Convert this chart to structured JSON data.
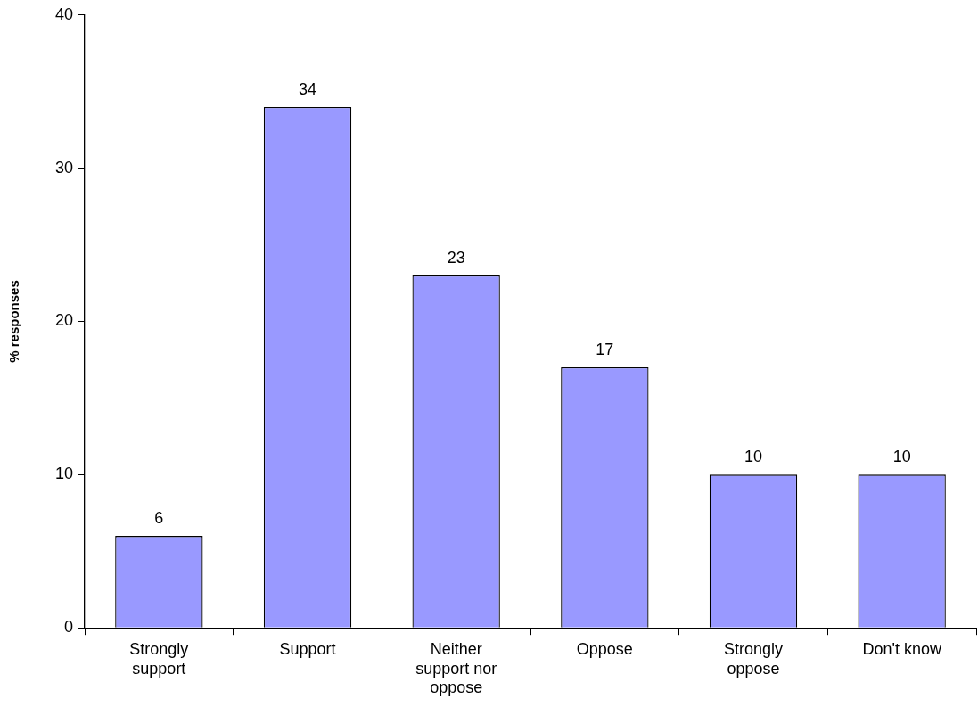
{
  "chart_data": {
    "type": "bar",
    "ylabel": "% responses",
    "categories": [
      "Strongly support",
      "Support",
      "Neither support nor oppose",
      "Oppose",
      "Strongly oppose",
      "Don't know"
    ],
    "values": [
      6,
      34,
      23,
      17,
      10,
      10
    ],
    "color": "#9999ff",
    "ylim": [
      0,
      40
    ],
    "yticks": [
      0,
      10,
      20,
      30,
      40
    ],
    "grid": false,
    "legend": false,
    "data_labels": true
  }
}
